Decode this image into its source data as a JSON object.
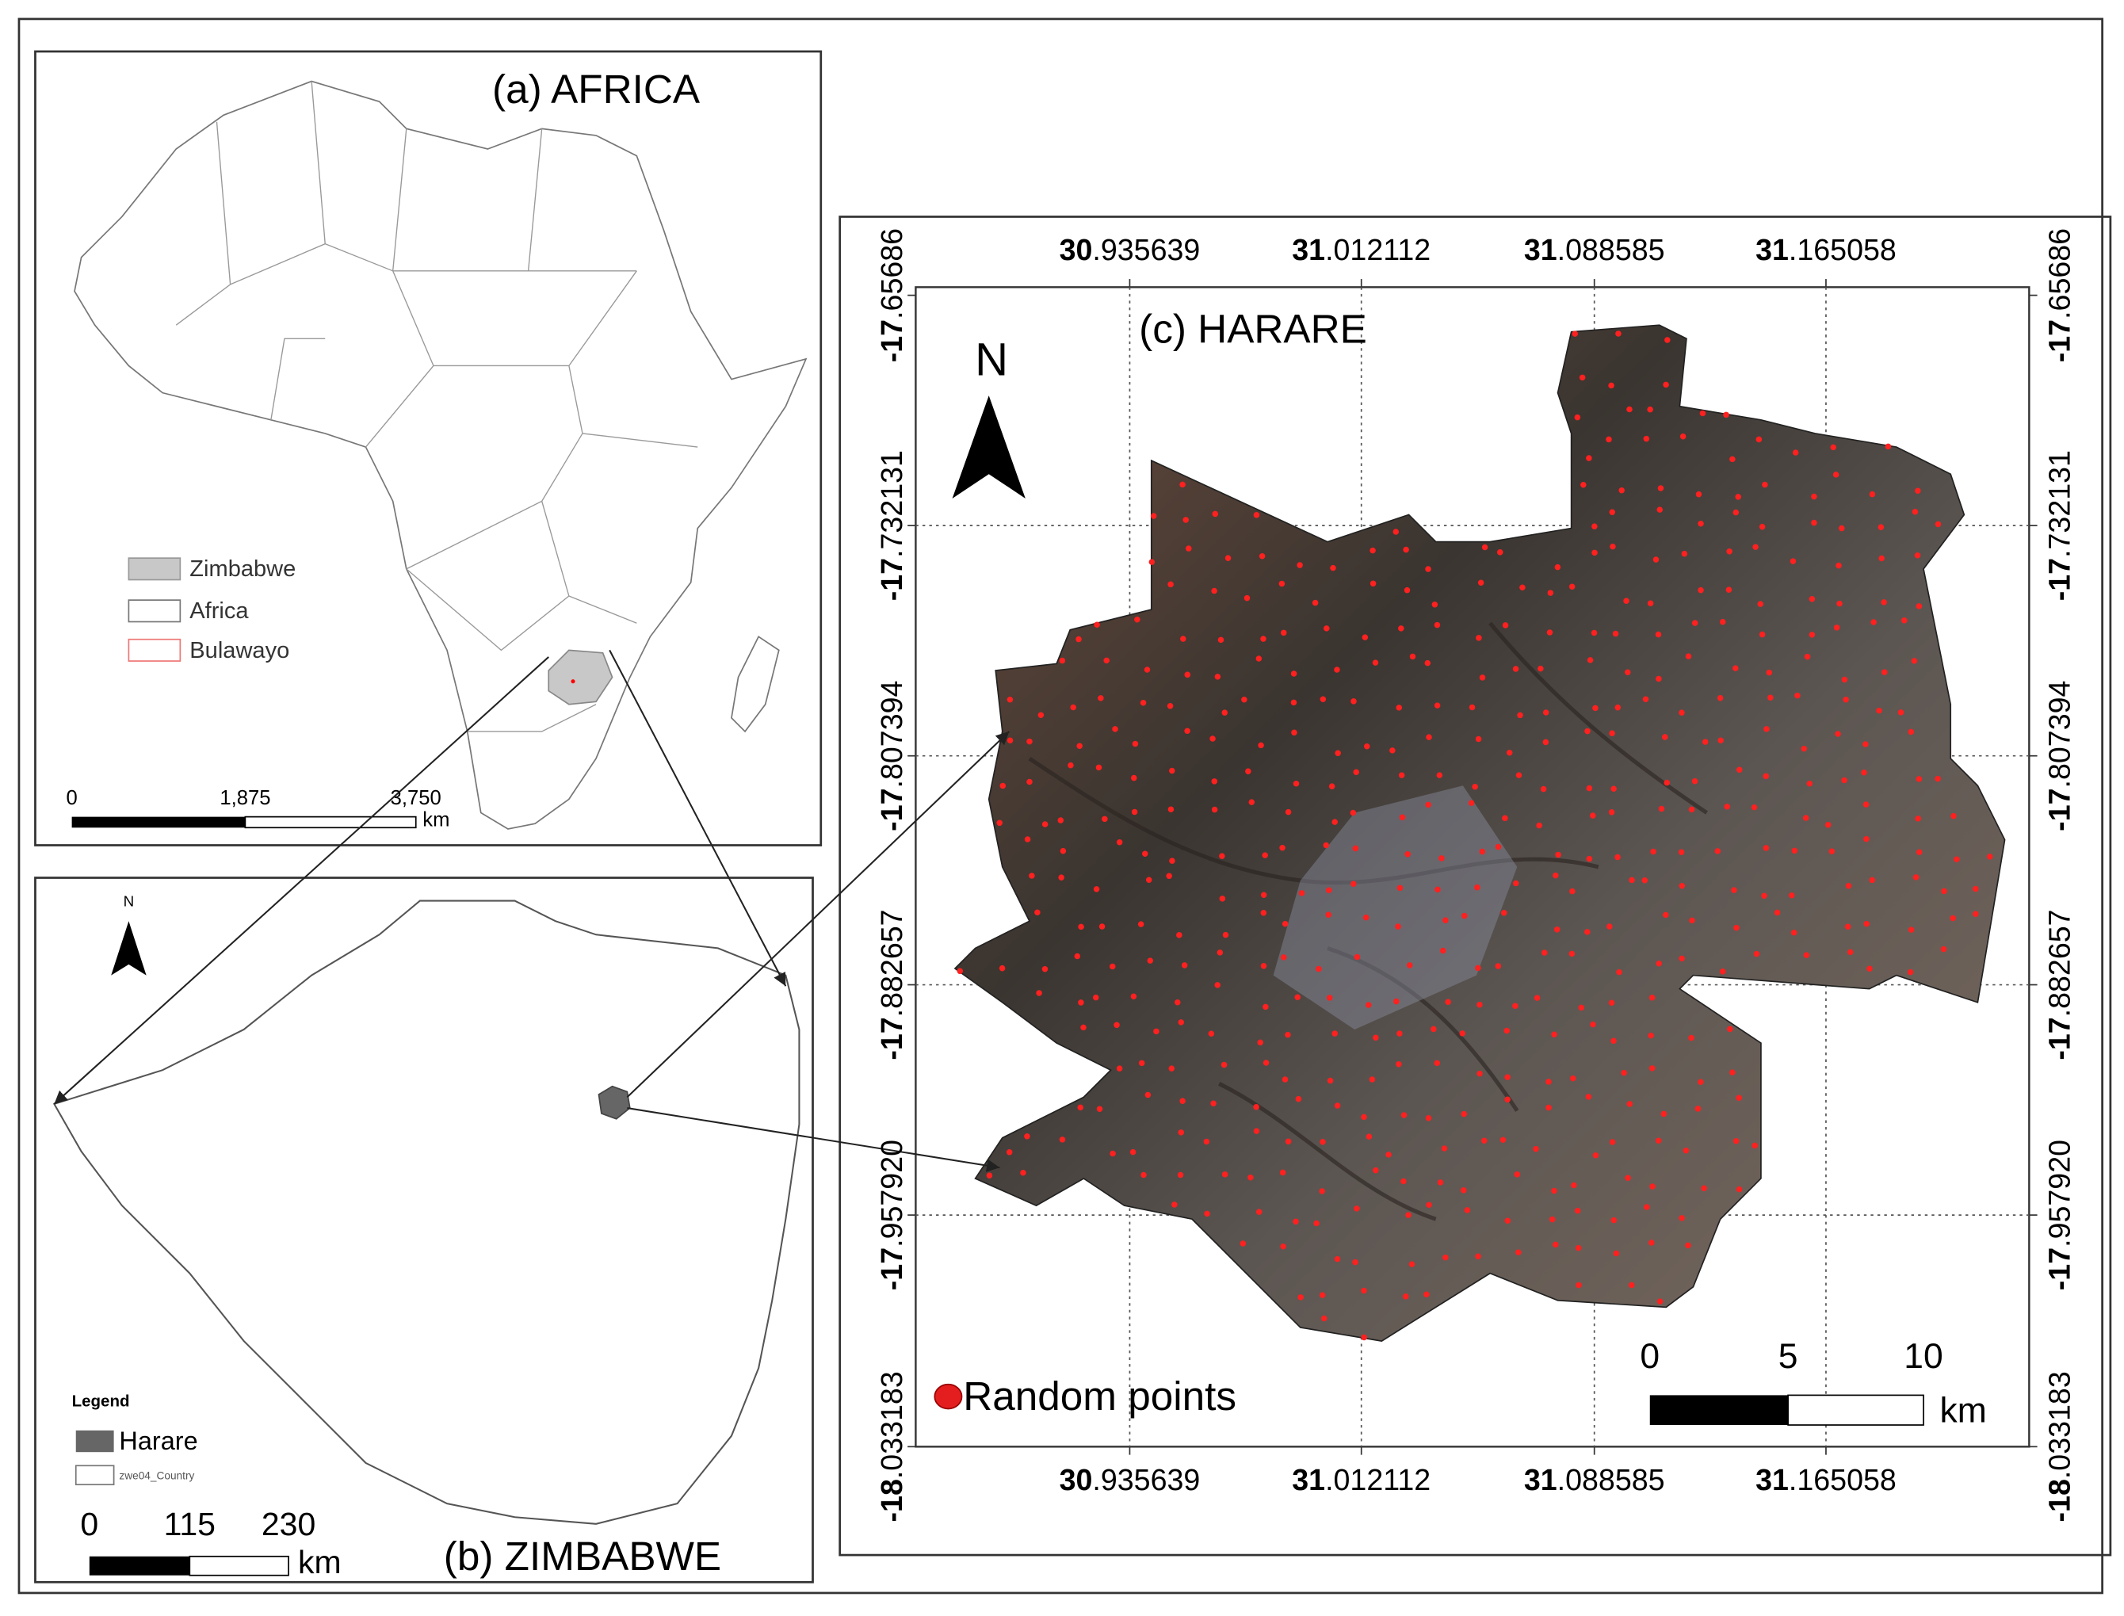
{
  "panels": {
    "africa": {
      "title": "(a) AFRICA",
      "legend": [
        "Zimbabwe",
        "Africa",
        "Bulawayo"
      ],
      "scale": {
        "labels": [
          "0",
          "1,875",
          "3,750"
        ],
        "unit": "km"
      }
    },
    "zimbabwe": {
      "title": "(b) ZIMBABWE",
      "north": "N",
      "legend_title": "Legend",
      "legend": [
        "Harare",
        "zwe04_Country"
      ],
      "scale": {
        "labels": [
          "0",
          "115",
          "230"
        ],
        "unit": "km"
      }
    },
    "harare": {
      "title": "(c) HARARE",
      "north": "N",
      "x_labels": [
        "30.935639",
        "31.012112",
        "31.088585",
        "31.165058"
      ],
      "y_labels": [
        "-17.65686",
        "-17.732131",
        "-17.807394",
        "-17.882657",
        "-17.957920",
        "-18.033183"
      ],
      "legend": "Random points",
      "scale": {
        "labels": [
          "0",
          "5",
          "10"
        ],
        "unit": "km"
      }
    }
  }
}
